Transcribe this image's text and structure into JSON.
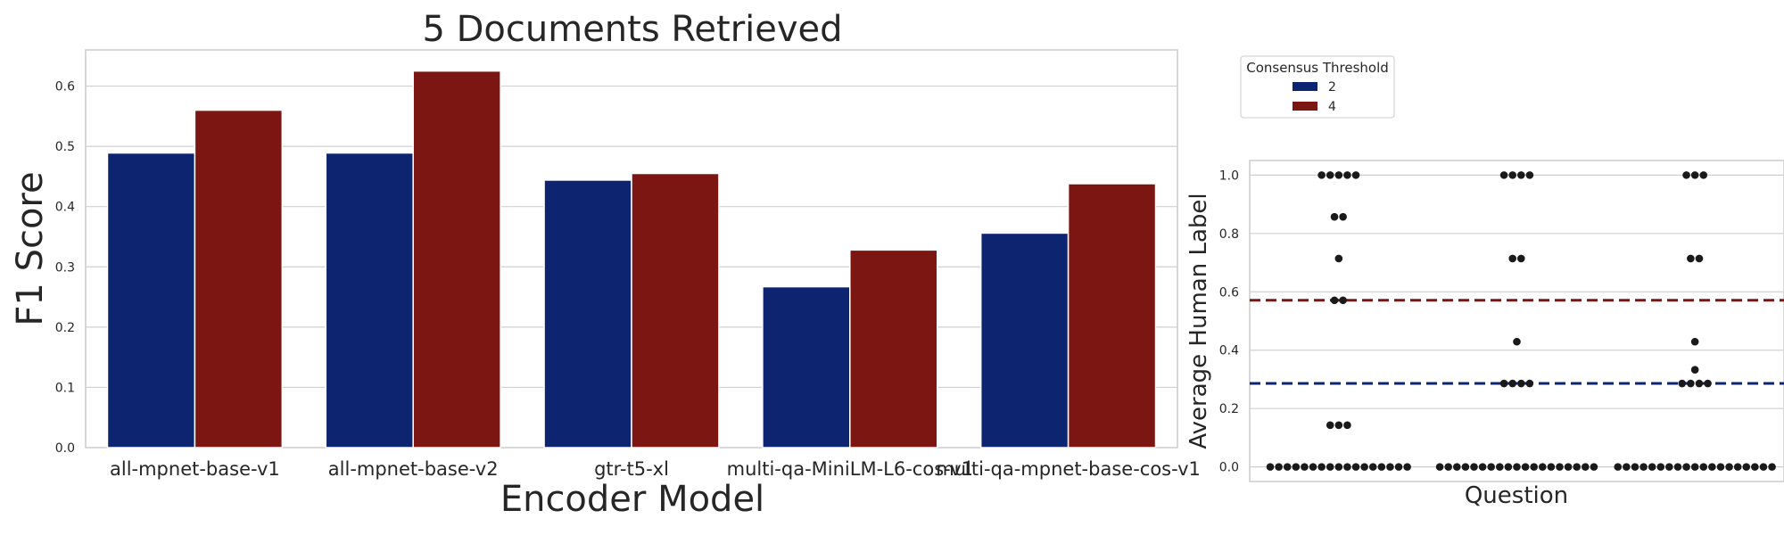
{
  "colors": {
    "series_2": "#0d2571",
    "series_4": "#7b1612",
    "grid": "#d0d0d0",
    "frame": "#cccccc",
    "dots": "#1a1a1a"
  },
  "chart_data": [
    {
      "type": "bar",
      "title": "5 Documents Retrieved",
      "xlabel": "Encoder Model",
      "ylabel": "F1 Score",
      "categories": [
        "all-mpnet-base-v1",
        "all-mpnet-base-v2",
        "gtr-t5-xl",
        "multi-qa-MiniLM-L6-cos-v1",
        "multi-qa-mpnet-base-cos-v1"
      ],
      "series": [
        {
          "name": "2",
          "values": [
            0.489,
            0.489,
            0.444,
            0.267,
            0.356
          ]
        },
        {
          "name": "4",
          "values": [
            0.56,
            0.625,
            0.455,
            0.328,
            0.438
          ]
        }
      ],
      "ylim": [
        0,
        0.66
      ],
      "yticks": [
        "0.0",
        "0.1",
        "0.2",
        "0.3",
        "0.4",
        "0.5",
        "0.6"
      ],
      "grid": true
    },
    {
      "type": "scatter",
      "xlabel": "Question",
      "ylabel": "Average Human Label",
      "ylim": [
        -0.05,
        1.05
      ],
      "yticks": [
        "0.0",
        "0.2",
        "0.4",
        "0.6",
        "0.8",
        "1.0"
      ],
      "grid": true,
      "legend": {
        "title": "Consensus Threshold",
        "entries": [
          "2",
          "4"
        ],
        "placement": "top-left"
      },
      "reference_lines": [
        {
          "series": "4",
          "y": 0.571
        },
        {
          "series": "2",
          "y": 0.286
        }
      ],
      "groups": [
        {
          "index": 0,
          "values": [
            0,
            0,
            0,
            0,
            0,
            0,
            0,
            0,
            0,
            0,
            0,
            0,
            0,
            0,
            0,
            0,
            0,
            0.143,
            0.143,
            0.143,
            0.571,
            0.571,
            0.714,
            0.857,
            0.857,
            1,
            1,
            1,
            1,
            1
          ]
        },
        {
          "index": 1,
          "values": [
            0,
            0,
            0,
            0,
            0,
            0,
            0,
            0,
            0,
            0,
            0,
            0,
            0,
            0,
            0,
            0,
            0,
            0,
            0,
            0.286,
            0.286,
            0.286,
            0.286,
            0.429,
            0.714,
            0.714,
            1,
            1,
            1,
            1
          ]
        },
        {
          "index": 2,
          "values": [
            0,
            0,
            0,
            0,
            0,
            0,
            0,
            0,
            0,
            0,
            0,
            0,
            0,
            0,
            0,
            0,
            0,
            0,
            0,
            0.286,
            0.286,
            0.286,
            0.286,
            0.333,
            0.429,
            0.714,
            0.714,
            1,
            1,
            1
          ]
        }
      ]
    }
  ]
}
